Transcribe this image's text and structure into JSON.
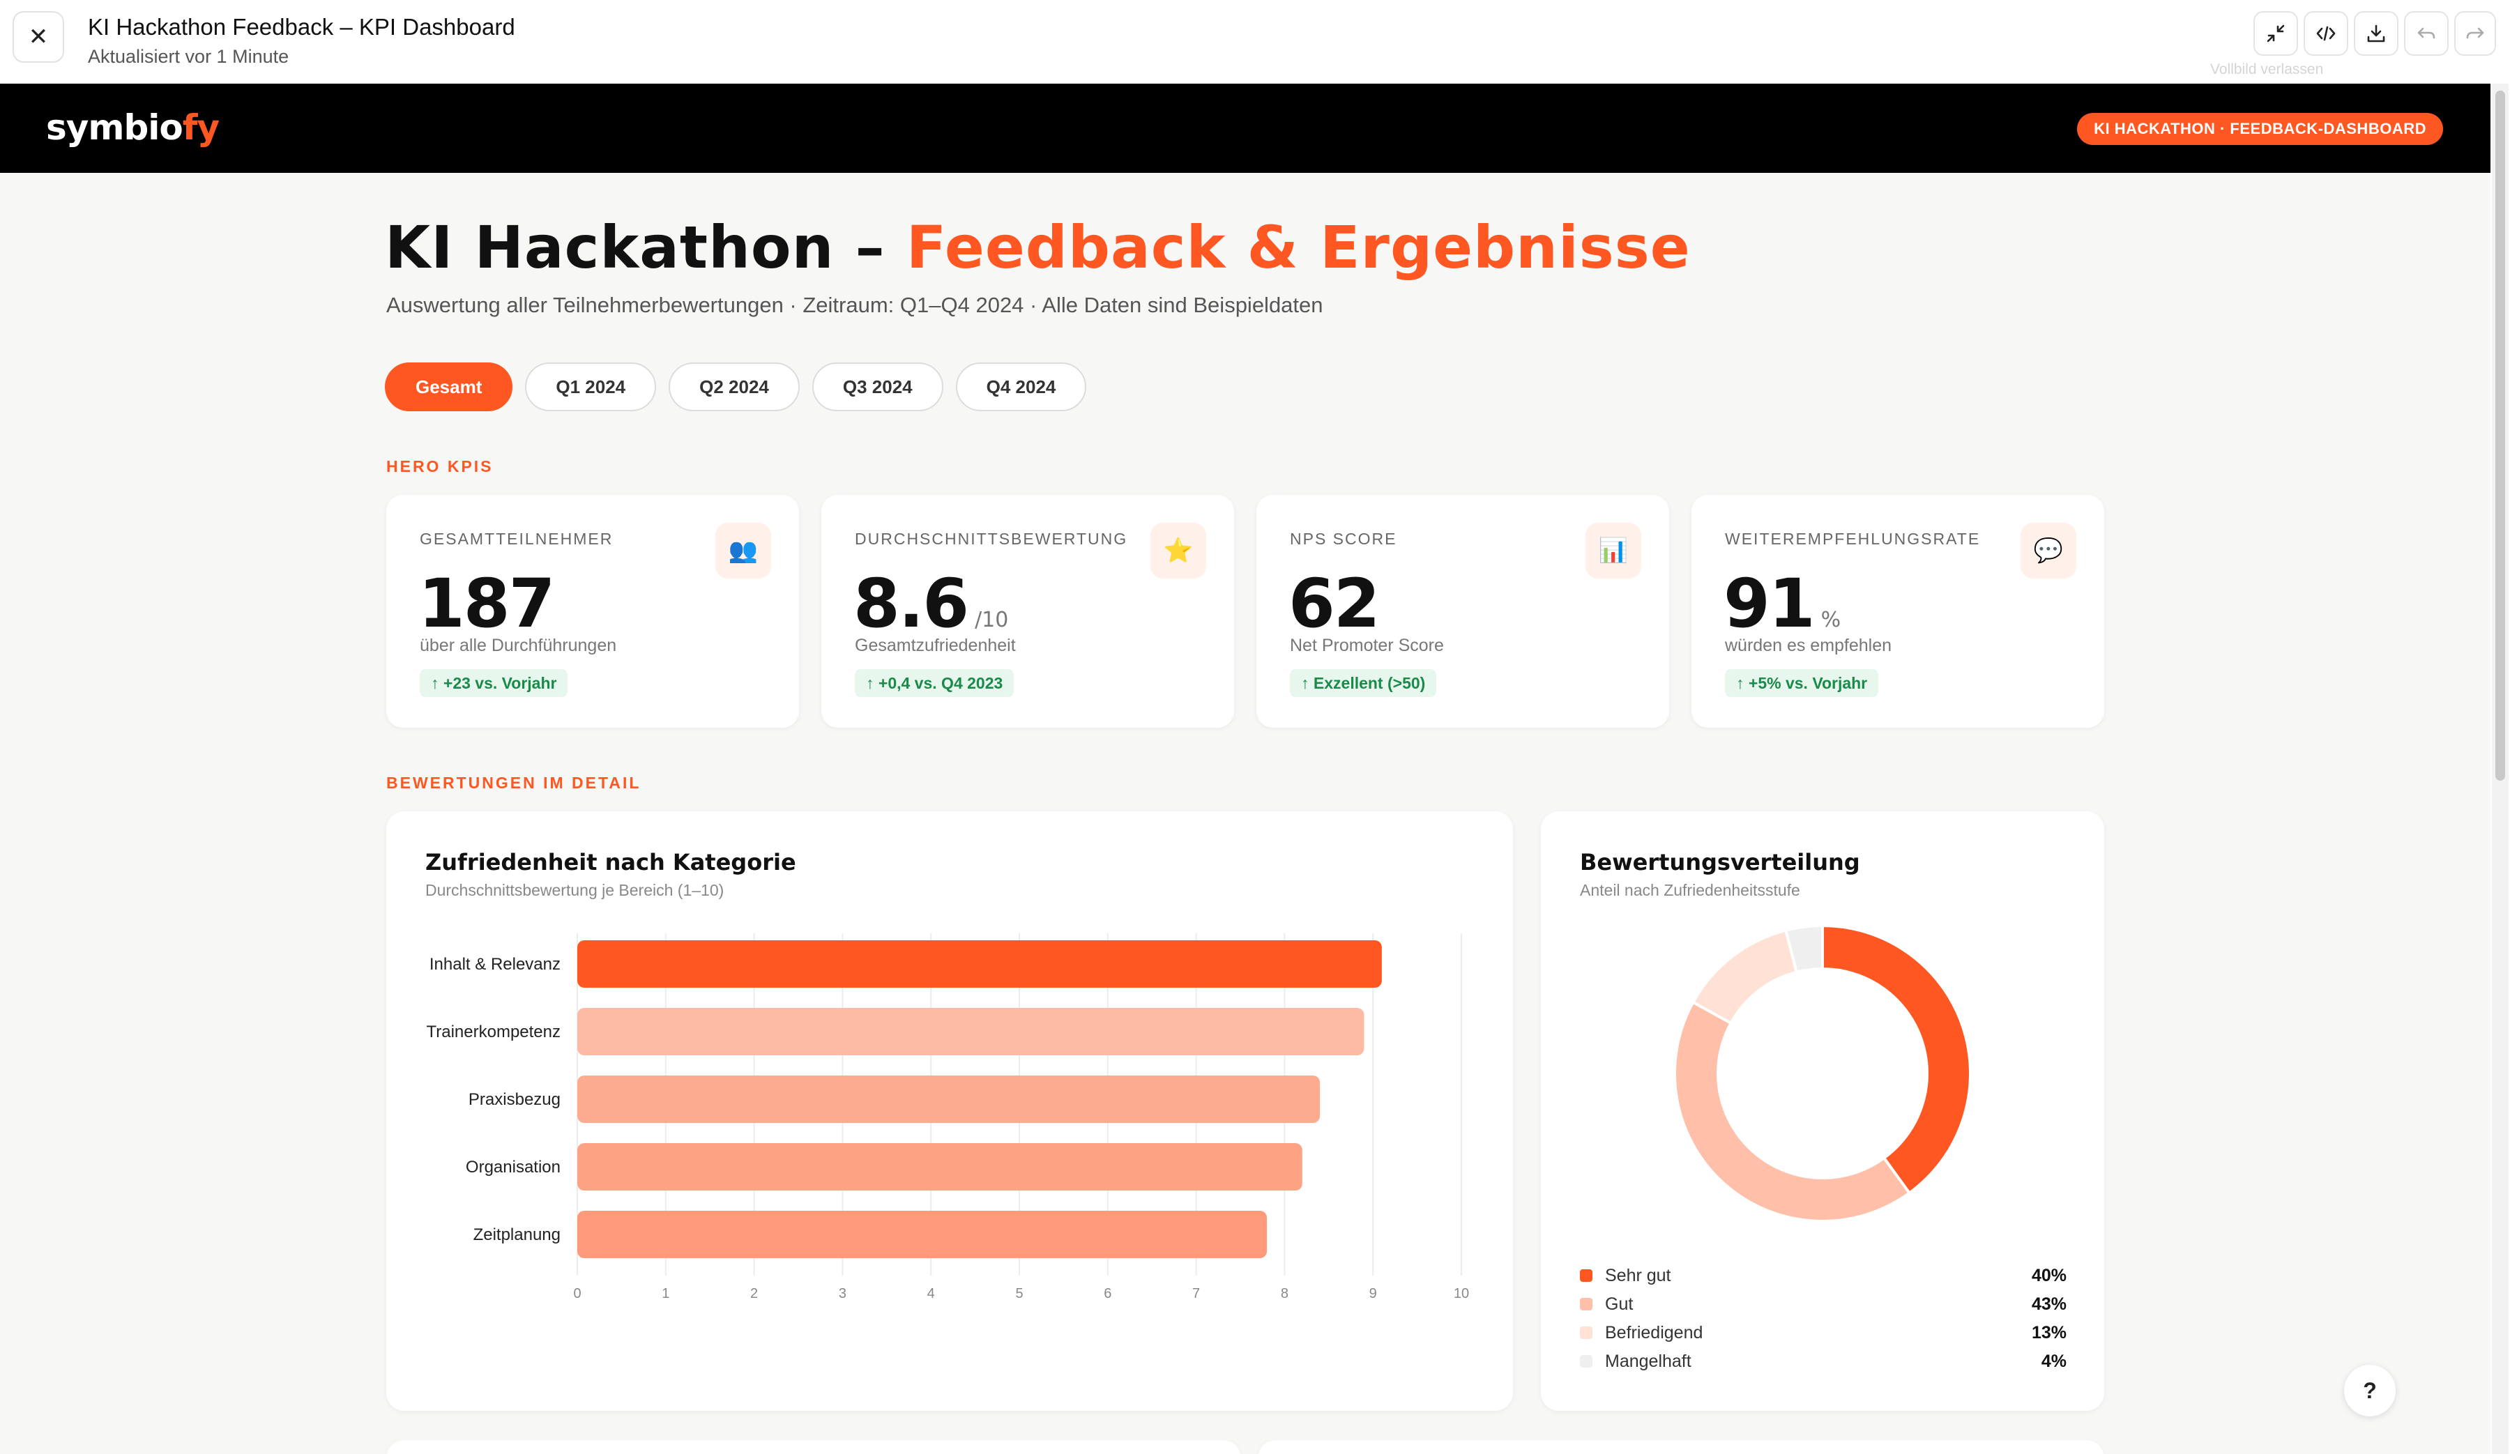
{
  "window": {
    "title": "KI Hackathon Feedback – KPI Dashboard",
    "subtitle": "Aktualisiert vor 1 Minute",
    "tooltip": "Vollbild verlassen"
  },
  "brand": {
    "logo_main": "symbio",
    "logo_accent": "fy",
    "badge": "KI HACKATHON · FEEDBACK-DASHBOARD"
  },
  "header": {
    "title_main": "KI Hackathon – ",
    "title_accent": "Feedback & Ergebnisse",
    "subtitle": "Auswertung aller Teilnehmerbewertungen · Zeitraum: Q1–Q4 2024 · Alle Daten sind Beispieldaten"
  },
  "tabs": [
    {
      "label": "Gesamt",
      "active": true
    },
    {
      "label": "Q1 2024",
      "active": false
    },
    {
      "label": "Q2 2024",
      "active": false
    },
    {
      "label": "Q3 2024",
      "active": false
    },
    {
      "label": "Q4 2024",
      "active": false
    }
  ],
  "sections": {
    "hero": "HERO KPIS",
    "details": "BEWERTUNGEN IM DETAIL"
  },
  "kpis": [
    {
      "label": "GESAMTTEILNEHMER",
      "icon": "people-icon",
      "icon_glyph": "👥",
      "value": "187",
      "unit": "",
      "desc": "über alle Durchführungen",
      "trend": "↑ +23 vs. Vorjahr"
    },
    {
      "label": "DURCHSCHNITTSBEWERTUNG",
      "icon": "star-icon",
      "icon_glyph": "⭐",
      "value": "8.6",
      "unit": "/10",
      "desc": "Gesamtzufriedenheit",
      "trend": "↑ +0,4 vs. Q4 2023"
    },
    {
      "label": "NPS SCORE",
      "icon": "bar-chart-icon",
      "icon_glyph": "📊",
      "value": "62",
      "unit": "",
      "desc": "Net Promoter Score",
      "trend": "↑ Exzellent (>50)"
    },
    {
      "label": "WEITEREMPFEHLUNGSRATE",
      "icon": "speech-bubble-icon",
      "icon_glyph": "💬",
      "value": "91",
      "unit": "%",
      "desc": "würden es empfehlen",
      "trend": "↑ +5% vs. Vorjahr"
    }
  ],
  "bar_panel": {
    "title": "Zufriedenheit nach Kategorie",
    "subtitle": "Durchschnittsbewertung je Bereich (1–10)"
  },
  "donut_panel": {
    "title": "Bewertungsverteilung",
    "subtitle": "Anteil nach Zufriedenheitsstufe"
  },
  "chart_data": [
    {
      "type": "bar",
      "orientation": "horizontal",
      "title": "Zufriedenheit nach Kategorie",
      "subtitle": "Durchschnittsbewertung je Bereich (1–10)",
      "categories": [
        "Inhalt & Relevanz",
        "Trainerkompetenz",
        "Praxisbezug",
        "Organisation",
        "Zeitplanung"
      ],
      "values": [
        9.1,
        8.9,
        8.4,
        8.2,
        7.8
      ],
      "colors": [
        "#ff5722",
        "#fdbba5",
        "#fdab8f",
        "#fda283",
        "#fc9a79"
      ],
      "xlim": [
        0,
        10
      ],
      "xticks": [
        0,
        1,
        2,
        3,
        4,
        5,
        6,
        7,
        8,
        9,
        10
      ],
      "grid": true
    },
    {
      "type": "pie",
      "donut": true,
      "title": "Bewertungsverteilung",
      "subtitle": "Anteil nach Zufriedenheitsstufe",
      "slices": [
        {
          "label": "Sehr gut",
          "value": 40,
          "display": "40%",
          "color": "#ff5722"
        },
        {
          "label": "Gut",
          "value": 43,
          "display": "43%",
          "color": "#ffbfa8"
        },
        {
          "label": "Befriedigend",
          "value": 13,
          "display": "13%",
          "color": "#ffe1d6"
        },
        {
          "label": "Mangelhaft",
          "value": 4,
          "display": "4%",
          "color": "#efefef"
        }
      ],
      "legend": "bottom"
    }
  ]
}
